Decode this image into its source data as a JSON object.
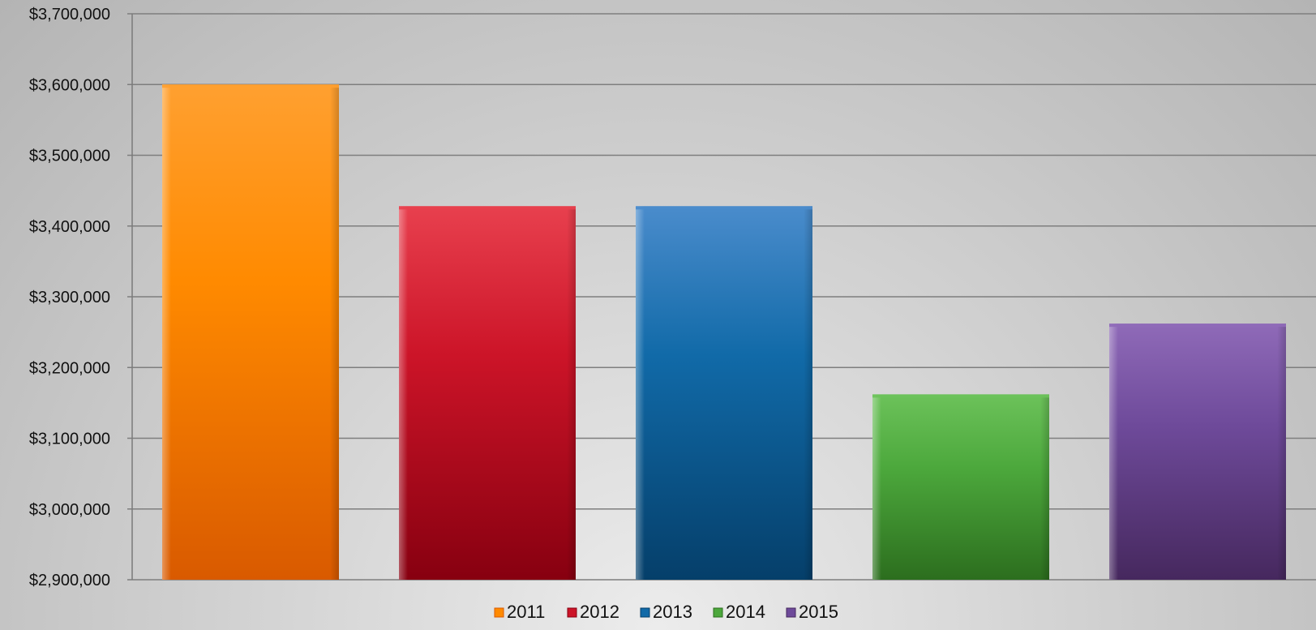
{
  "chart_data": {
    "type": "bar",
    "title": "",
    "xlabel": "",
    "ylabel": "",
    "categories": [
      "2011",
      "2012",
      "2013",
      "2014",
      "2015"
    ],
    "values": [
      3600000,
      3428000,
      3428000,
      3162000,
      3262000
    ],
    "ylim": [
      2900000,
      3700000
    ],
    "yticks": [
      2900000,
      3000000,
      3100000,
      3200000,
      3300000,
      3400000,
      3500000,
      3600000,
      3700000
    ],
    "ytick_labels": [
      "$2,900,000",
      "$3,000,000",
      "$3,100,000",
      "$3,200,000",
      "$3,300,000",
      "$3,400,000",
      "$3,500,000",
      "$3,600,000",
      "$3,700,000"
    ],
    "grid": true,
    "legend_position": "bottom",
    "legend": [
      "2011",
      "2012",
      "2013",
      "2014",
      "2015"
    ],
    "colors": [
      "#ff8a00",
      "#cc1428",
      "#116aa8",
      "#4ca83c",
      "#6e4a9a"
    ],
    "colors_light": [
      "#ffa030",
      "#e8404e",
      "#4a8ccc",
      "#6cc25a",
      "#8f6ab8"
    ],
    "colors_dark": [
      "#d95a00",
      "#870010",
      "#053f6a",
      "#2c6e1e",
      "#46285e"
    ]
  }
}
